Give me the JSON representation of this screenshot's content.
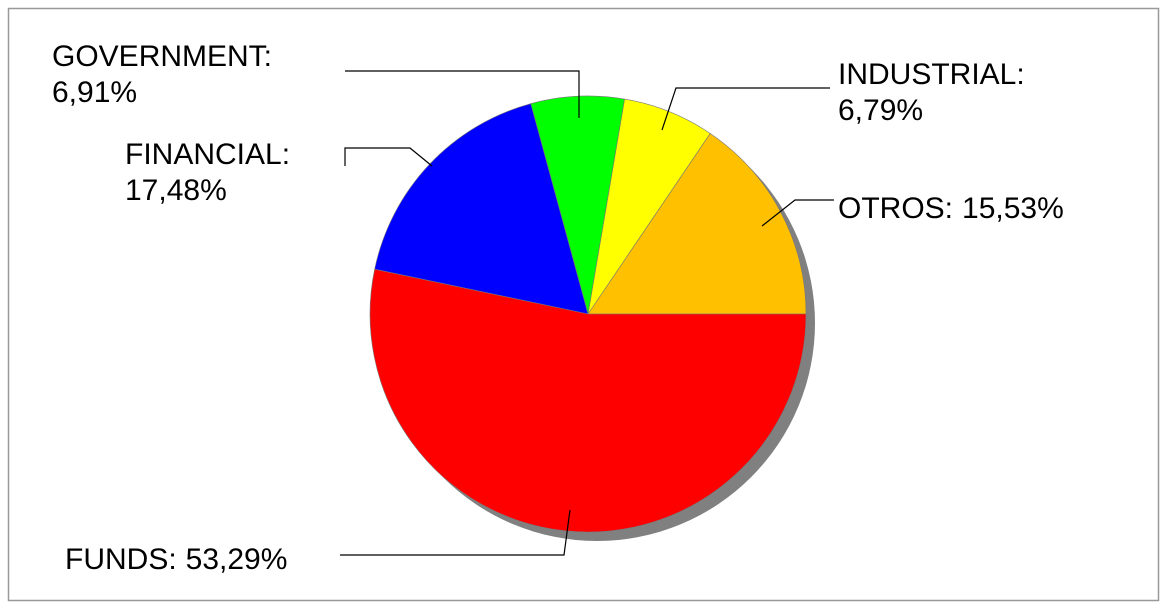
{
  "chart_data": {
    "type": "pie",
    "categories": [
      "OTROS:",
      "INDUSTRIAL:",
      "GOVERNMENT:",
      "FINANCIAL:",
      "FUNDS:"
    ],
    "values": [
      15.53,
      6.79,
      6.91,
      17.48,
      53.29
    ],
    "value_labels": [
      "15,53%",
      "6,79%",
      "6,91%",
      "17,48%",
      "53,29%"
    ],
    "colors": [
      "#ffc000",
      "#ffff00",
      "#00ff00",
      "#0000ff",
      "#ff0000"
    ]
  }
}
